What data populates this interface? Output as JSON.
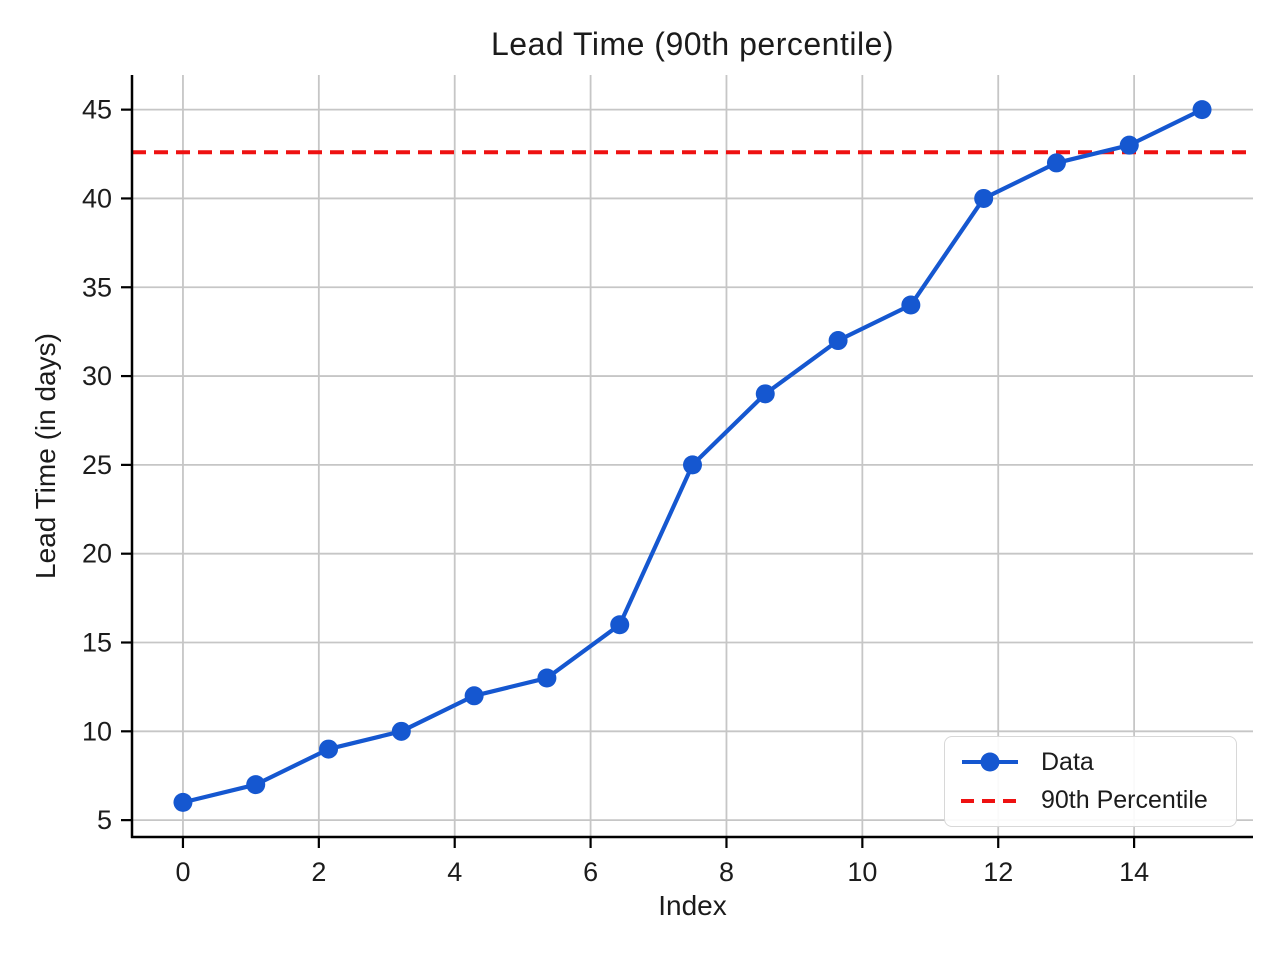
{
  "chart_data": {
    "type": "line",
    "title": "Lead Time (90th percentile)",
    "xlabel": "Index",
    "ylabel": "Lead Time (in days)",
    "x": [
      0,
      1.071,
      2.143,
      3.214,
      4.286,
      5.357,
      6.429,
      7.5,
      8.571,
      9.643,
      10.714,
      11.786,
      12.857,
      13.929,
      15
    ],
    "y": [
      6,
      7,
      9,
      10,
      12,
      13,
      16,
      25,
      29,
      32,
      34,
      40,
      42,
      43,
      45
    ],
    "percentile_value": 42.6,
    "xlim": [
      -0.75,
      15.75
    ],
    "ylim": [
      4.05,
      46.95
    ],
    "x_ticks": [
      0,
      2,
      4,
      6,
      8,
      10,
      12,
      14
    ],
    "y_ticks": [
      5,
      10,
      15,
      20,
      25,
      30,
      35,
      40,
      45
    ],
    "grid": true,
    "legend": {
      "position": "lower right",
      "items": [
        {
          "label": "Data",
          "style": "solid-line-with-marker",
          "color": "#1557d0"
        },
        {
          "label": "90th Percentile",
          "style": "dashed-line",
          "color": "#ee1111"
        }
      ]
    },
    "colors": {
      "data_line": "#1557d0",
      "percentile_line": "#ee1111",
      "grid": "#c6c6c6",
      "spine": "#000000",
      "text": "#1c1c1c"
    }
  }
}
